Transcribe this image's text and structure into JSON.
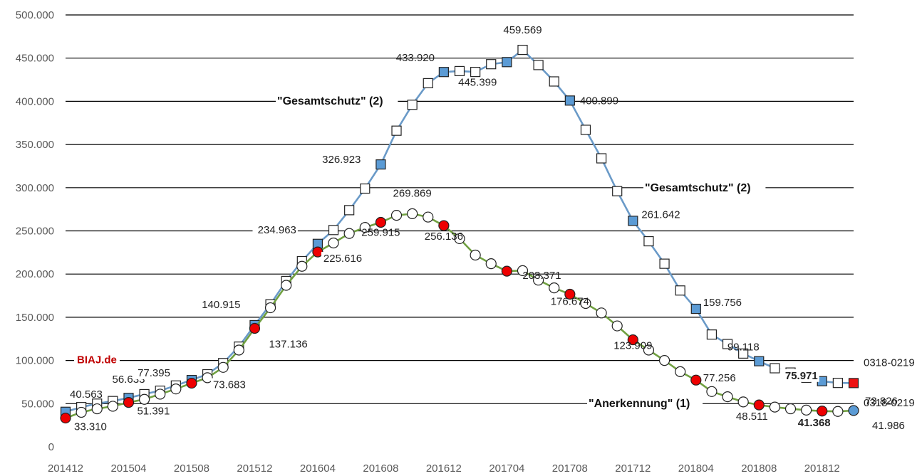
{
  "chart_data": {
    "type": "line",
    "title": "",
    "xlabel": "",
    "ylabel": "",
    "ylim": [
      0,
      500000
    ],
    "y_ticks": [
      "0",
      "50.000",
      "100.000",
      "150.000",
      "200.000",
      "250.000",
      "300.000",
      "350.000",
      "400.000",
      "450.000",
      "500.000"
    ],
    "x_ticks": [
      "201412",
      "201504",
      "201508",
      "201512",
      "201604",
      "201608",
      "201612",
      "201704",
      "201708",
      "201712",
      "201804",
      "201808",
      "201812"
    ],
    "grid": true,
    "brand": "BIAJ.de",
    "series": [
      {
        "name": "\"Gesamtschutz\" (2)",
        "color": "#6a9ac8",
        "marker": "square",
        "annotation_labels": [
          "\"Gesamtschutz\" (2)",
          "\"Gesamtschutz\" (2)"
        ],
        "values": [
          40563,
          46000,
          50000,
          53000,
          56633,
          61000,
          65000,
          71000,
          77395,
          84000,
          97000,
          116000,
          140915,
          165000,
          192000,
          215000,
          234963,
          251000,
          274000,
          299000,
          326923,
          366000,
          396000,
          421000,
          433920,
          435000,
          434000,
          443000,
          445399,
          459569,
          442000,
          423000,
          400899,
          367000,
          334000,
          296000,
          261642,
          238000,
          212000,
          181000,
          159756,
          130000,
          119000,
          108000,
          99118,
          91000,
          86000,
          80000,
          75971,
          74000,
          73826
        ],
        "highlight_points": [
          {
            "x": "201412",
            "value": 40563,
            "label": "40.563"
          },
          {
            "x": "201504",
            "value": 56633,
            "label": "56.633"
          },
          {
            "x": "201508",
            "value": 77395,
            "label": "77.395"
          },
          {
            "x": "201512",
            "value": 140915,
            "label": "140.915"
          },
          {
            "x": "201604",
            "value": 234963,
            "label": "234.963"
          },
          {
            "x": "201608",
            "value": 326923,
            "label": "326.923"
          },
          {
            "x": "201612",
            "value": 433920,
            "label": "433.920"
          },
          {
            "x": "201704",
            "value": 445399,
            "label": "445.399"
          },
          {
            "x": "201705",
            "value": 459569,
            "label": "459.569"
          },
          {
            "x": "201708",
            "value": 400899,
            "label": "400.899"
          },
          {
            "x": "201712",
            "value": 261642,
            "label": "261.642"
          },
          {
            "x": "201804",
            "value": 159756,
            "label": "159.756"
          },
          {
            "x": "201808",
            "value": 99118,
            "label": "99.118"
          },
          {
            "x": "201812",
            "value": 75971,
            "label": "75.971"
          },
          {
            "x": "201902",
            "value": 73826,
            "label": "73.826"
          }
        ],
        "end_label": "0318-0219"
      },
      {
        "name": "\"Anerkennung\" (1)",
        "color": "#70a040",
        "marker": "circle",
        "annotation_labels": [
          "\"Anerkennung\" (1)"
        ],
        "values": [
          33310,
          40000,
          44000,
          47000,
          51391,
          55000,
          61000,
          67000,
          73683,
          80000,
          92000,
          112000,
          137136,
          161000,
          187000,
          209000,
          225616,
          236000,
          247000,
          254000,
          259915,
          268000,
          269869,
          266000,
          256136,
          241000,
          222000,
          212000,
          203371,
          204000,
          193000,
          184000,
          176674,
          166000,
          155000,
          140000,
          123909,
          112000,
          100000,
          87000,
          77256,
          64000,
          58000,
          52000,
          48511,
          46000,
          44000,
          42500,
          41368,
          41000,
          41986
        ],
        "highlight_points": [
          {
            "x": "201412",
            "value": 33310,
            "label": "33.310"
          },
          {
            "x": "201504",
            "value": 51391,
            "label": "51.391"
          },
          {
            "x": "201508",
            "value": 73683,
            "label": "73.683"
          },
          {
            "x": "201512",
            "value": 137136,
            "label": "137.136"
          },
          {
            "x": "201604",
            "value": 225616,
            "label": "225.616"
          },
          {
            "x": "201608",
            "value": 259915,
            "label": "259.915"
          },
          {
            "x": "201610",
            "value": 269869,
            "label": "269.869"
          },
          {
            "x": "201612",
            "value": 256136,
            "label": "256.136"
          },
          {
            "x": "201704",
            "value": 203371,
            "label": "203.371"
          },
          {
            "x": "201708",
            "value": 176674,
            "label": "176.674"
          },
          {
            "x": "201712",
            "value": 123909,
            "label": "123.909"
          },
          {
            "x": "201804",
            "value": 77256,
            "label": "77.256"
          },
          {
            "x": "201808",
            "value": 48511,
            "label": "48.511"
          },
          {
            "x": "201812",
            "value": 41368,
            "label": "41.368"
          },
          {
            "x": "201902",
            "value": 41986,
            "label": "41.986"
          }
        ],
        "end_label": "0318-0219"
      }
    ]
  }
}
